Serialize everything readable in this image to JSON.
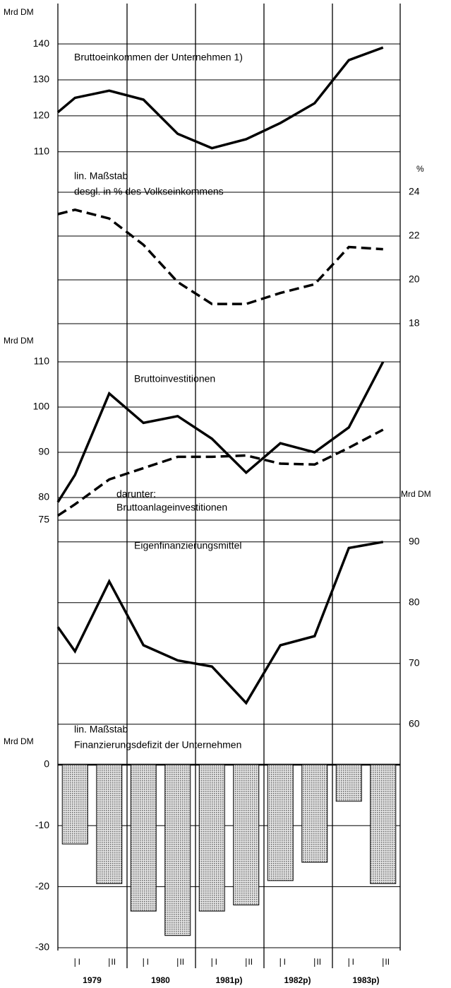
{
  "chart_data": [
    {
      "type": "line",
      "axis_label": "Mrd DM",
      "axis_side": "left",
      "annotations": [
        "Bruttoeinkommen der Unternehmen 1)"
      ],
      "x": [
        0.5,
        1,
        2,
        3,
        4,
        5,
        6,
        7,
        8,
        9,
        10
      ],
      "xlim": [
        0.5,
        10.5
      ],
      "ylim": [
        107,
        142
      ],
      "yticks": [
        110,
        120,
        130,
        140
      ],
      "grid": true,
      "series": [
        {
          "color": "#000000",
          "style": "solid",
          "values": [
            121,
            125,
            127,
            124.5,
            115,
            111,
            113.5,
            118,
            123.5,
            135.5,
            139
          ]
        }
      ]
    },
    {
      "type": "line",
      "axis_label": "%",
      "axis_side": "right",
      "annotations": [
        "lin. Maßstab",
        "desgl. in % des Volkseinkommens"
      ],
      "x": [
        0.5,
        1,
        2,
        3,
        4,
        5,
        6,
        7,
        8,
        9,
        10
      ],
      "xlim": [
        0.5,
        10.5
      ],
      "ylim": [
        17.5,
        25.5
      ],
      "yticks": [
        18,
        20,
        22,
        24
      ],
      "grid": true,
      "series": [
        {
          "color": "#000000",
          "style": "dashed",
          "values": [
            23.0,
            23.2,
            22.8,
            21.6,
            19.9,
            18.9,
            18.9,
            19.4,
            19.8,
            21.5,
            21.4
          ]
        }
      ]
    },
    {
      "type": "line",
      "axis_label": "Mrd DM",
      "axis_side": "left",
      "annotations": [
        "Bruttoinvestitionen",
        "darunter:",
        "Bruttoanlageinvestitionen"
      ],
      "x": [
        0.5,
        1,
        2,
        3,
        4,
        5,
        6,
        7,
        8,
        9,
        10
      ],
      "xlim": [
        0.5,
        10.5
      ],
      "ylim": [
        74,
        111
      ],
      "yticks": [
        75,
        80,
        90,
        100,
        110
      ],
      "grid": true,
      "series": [
        {
          "color": "#000000",
          "style": "solid",
          "values": [
            79,
            85,
            103,
            96.5,
            98,
            93,
            85.5,
            92,
            90,
            95.5,
            110
          ]
        },
        {
          "color": "#000000",
          "style": "dashed",
          "values": [
            76,
            78.5,
            84,
            86.5,
            89,
            89,
            89.3,
            87.5,
            87.3,
            91,
            95
          ]
        }
      ]
    },
    {
      "type": "line",
      "axis_label": "Mrd DM",
      "axis_side": "right",
      "annotations": [
        "Eigenfinanzierungsmittel",
        "lin. Maßstab",
        "Finanzierungsdefizit der Unternehmen"
      ],
      "x": [
        0.5,
        1,
        2,
        3,
        4,
        5,
        6,
        7,
        8,
        9,
        10
      ],
      "xlim": [
        0.5,
        10.5
      ],
      "ylim": [
        58,
        93
      ],
      "yticks": [
        60,
        70,
        80,
        90
      ],
      "grid": true,
      "series": [
        {
          "color": "#000000",
          "style": "solid",
          "values": [
            76,
            72,
            83.5,
            73,
            70.5,
            69.5,
            63.5,
            73,
            74.5,
            89,
            90
          ]
        }
      ]
    },
    {
      "type": "bar",
      "axis_label": "Mrd DM",
      "axis_side": "left",
      "annotations": [],
      "categories": [
        "I",
        "II",
        "I",
        "II",
        "I",
        "II",
        "I",
        "II",
        "I",
        "II"
      ],
      "years": [
        "1979",
        "1980",
        "1981p)",
        "1982p)",
        "1983p)"
      ],
      "xlim": [
        0.5,
        10.5
      ],
      "ylim": [
        -31,
        2
      ],
      "yticks": [
        0,
        -10,
        -20,
        -30
      ],
      "grid": true,
      "color": "#bdbdbd",
      "values": [
        -13,
        -19.5,
        -24,
        -28,
        -24,
        -23,
        -19,
        -16,
        -6,
        -19.5
      ]
    }
  ]
}
